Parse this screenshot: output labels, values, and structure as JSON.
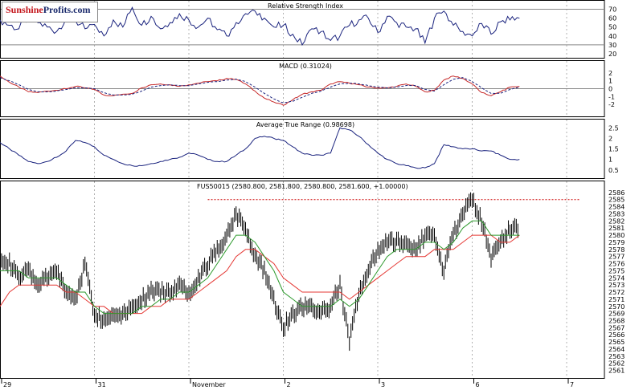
{
  "logo": {
    "brand_part1": "Sunshine",
    "brand_part2": "Profits",
    "brand_part3": ".com"
  },
  "colors": {
    "rsi": "#1a237e",
    "macd_line": "#c62828",
    "macd_signal": "#1a237e",
    "atr": "#1a237e",
    "price": "#000000",
    "ma_fast": "#2e9a2e",
    "ma_slow": "#e53935",
    "resistance": "#cc0000"
  },
  "chart_data": [
    {
      "type": "line",
      "title": "Relative Strength Index",
      "ylim": [
        20,
        75
      ],
      "yticks": [
        20,
        30,
        40,
        50,
        60,
        70
      ],
      "reference_lines": [
        70,
        30
      ],
      "x": [
        0,
        2,
        4,
        6,
        8,
        10,
        12,
        14,
        16,
        18,
        20,
        22,
        24,
        26,
        28,
        30,
        32,
        34,
        36,
        38,
        40,
        42,
        44,
        46,
        48,
        50,
        52,
        54,
        56,
        58,
        60,
        62,
        64,
        66,
        68,
        70,
        72,
        74,
        76,
        78,
        80,
        82,
        84,
        86,
        88,
        90,
        92,
        94,
        96,
        98,
        100,
        102,
        104,
        106,
        108,
        110
      ],
      "values": [
        58,
        52,
        48,
        62,
        55,
        50,
        45,
        60,
        57,
        48,
        53,
        40,
        58,
        50,
        72,
        52,
        62,
        48,
        55,
        65,
        58,
        50,
        60,
        47,
        40,
        55,
        65,
        68,
        60,
        50,
        52,
        42,
        30,
        48,
        45,
        35,
        40,
        52,
        58,
        60,
        44,
        62,
        55,
        50,
        48,
        32,
        60,
        68,
        52,
        45,
        40,
        54,
        42,
        56,
        58,
        60
      ]
    },
    {
      "type": "line",
      "title": "MACD (0.31024)",
      "ylim": [
        -3,
        3
      ],
      "yticks": [
        -2,
        -1,
        0,
        1,
        2
      ],
      "x": [
        0,
        2,
        4,
        6,
        8,
        10,
        12,
        14,
        16,
        18,
        20,
        22,
        24,
        26,
        28,
        30,
        32,
        34,
        36,
        38,
        40,
        42,
        44,
        46,
        48,
        50,
        52,
        54,
        56,
        58,
        60,
        62,
        64,
        66,
        68,
        70,
        72,
        74,
        76,
        78,
        80,
        82,
        84,
        86,
        88,
        90,
        92,
        94,
        96,
        98,
        100,
        102,
        104,
        106,
        108,
        110
      ],
      "series": [
        {
          "values": [
            1.6,
            0.8,
            0.2,
            -0.4,
            -0.5,
            -0.3,
            -0.2,
            0.0,
            0.3,
            0.1,
            -0.1,
            -0.8,
            -0.9,
            -0.7,
            -0.6,
            0.1,
            0.5,
            0.6,
            0.5,
            0.3,
            0.5,
            0.7,
            0.9,
            1.0,
            1.3,
            1.2,
            0.6,
            -0.3,
            -1.2,
            -1.7,
            -2.1,
            -1.4,
            -0.7,
            -0.4,
            -0.2,
            0.6,
            0.9,
            0.7,
            0.5,
            0.2,
            0.1,
            0.1,
            0.3,
            0.6,
            0.3,
            -0.4,
            -0.2,
            1.1,
            1.6,
            1.3,
            0.6,
            -0.5,
            -0.9,
            -0.4,
            0.2,
            0.3
          ]
        },
        {
          "values": [
            1.4,
            1.0,
            0.5,
            -0.1,
            -0.4,
            -0.4,
            -0.3,
            -0.1,
            0.1,
            0.1,
            0.0,
            -0.5,
            -0.8,
            -0.8,
            -0.7,
            -0.3,
            0.2,
            0.4,
            0.5,
            0.4,
            0.4,
            0.6,
            0.8,
            0.9,
            1.1,
            1.2,
            0.9,
            0.2,
            -0.6,
            -1.3,
            -1.8,
            -1.6,
            -1.1,
            -0.6,
            -0.3,
            0.2,
            0.6,
            0.7,
            0.6,
            0.4,
            0.2,
            0.1,
            0.2,
            0.4,
            0.4,
            -0.1,
            -0.3,
            0.5,
            1.2,
            1.4,
            0.9,
            0.1,
            -0.6,
            -0.6,
            -0.1,
            0.2
          ]
        }
      ]
    },
    {
      "type": "line",
      "title": "Average True Range (0.98698)",
      "ylim": [
        0.3,
        2.7
      ],
      "yticks": [
        0.5,
        1.0,
        1.5,
        2.0,
        2.5
      ],
      "x": [
        0,
        2,
        4,
        6,
        8,
        10,
        12,
        14,
        16,
        18,
        20,
        22,
        24,
        26,
        28,
        30,
        32,
        34,
        36,
        38,
        40,
        42,
        44,
        46,
        48,
        50,
        52,
        54,
        56,
        58,
        60,
        62,
        64,
        66,
        68,
        70,
        72,
        74,
        76,
        78,
        80,
        82,
        84,
        86,
        88,
        90,
        92,
        94,
        96,
        98,
        100,
        102,
        104,
        106,
        108,
        110
      ],
      "values": [
        1.8,
        1.5,
        1.2,
        0.9,
        0.8,
        0.9,
        1.1,
        1.4,
        1.9,
        1.8,
        1.6,
        1.2,
        1.0,
        0.8,
        0.7,
        0.7,
        0.8,
        0.9,
        1.0,
        1.1,
        1.3,
        1.2,
        1.0,
        0.9,
        0.9,
        1.2,
        1.5,
        2.0,
        2.1,
        2.0,
        1.9,
        1.6,
        1.3,
        1.2,
        1.2,
        1.3,
        2.5,
        2.4,
        2.1,
        1.7,
        1.3,
        1.0,
        0.8,
        0.7,
        0.6,
        0.6,
        0.8,
        1.7,
        1.6,
        1.5,
        1.5,
        1.4,
        1.4,
        1.2,
        1.0,
        1.0
      ]
    },
    {
      "type": "line",
      "title": "FUS50015 (2580.800, 2581.800, 2580.800, 2581.600, +1.00000)",
      "ylim": [
        2560.5,
        2587
      ],
      "yticks": [
        2561,
        2562,
        2563,
        2564,
        2565,
        2566,
        2567,
        2568,
        2569,
        2570,
        2571,
        2572,
        2573,
        2574,
        2575,
        2576,
        2577,
        2578,
        2579,
        2580,
        2581,
        2582,
        2583,
        2584,
        2585,
        2586
      ],
      "categories": [
        "29",
        "31",
        "November",
        "2",
        "3",
        "6",
        "7"
      ],
      "category_x": [
        0,
        20,
        40,
        60,
        80,
        100,
        120
      ],
      "resistance": 2585,
      "x": [
        0,
        2,
        4,
        6,
        8,
        10,
        12,
        14,
        16,
        18,
        20,
        22,
        24,
        26,
        28,
        30,
        32,
        34,
        36,
        38,
        40,
        42,
        44,
        46,
        48,
        50,
        52,
        54,
        56,
        58,
        60,
        62,
        64,
        66,
        68,
        70,
        72,
        74,
        76,
        78,
        80,
        82,
        84,
        86,
        88,
        90,
        92,
        94,
        96,
        98,
        100,
        102,
        104,
        106,
        108,
        110
      ],
      "series": [
        {
          "name": "price",
          "values": [
            2577,
            2576,
            2574,
            2575,
            2573,
            2574,
            2575,
            2572,
            2571,
            2576,
            2569,
            2568,
            2569,
            2569,
            2570,
            2571,
            2572,
            2572,
            2572,
            2573,
            2572,
            2574,
            2576,
            2578,
            2580,
            2583,
            2581,
            2577,
            2575,
            2571,
            2567,
            2569,
            2570,
            2570,
            2569,
            2570,
            2573,
            2565,
            2572,
            2575,
            2578,
            2579,
            2579,
            2579,
            2578,
            2580,
            2580,
            2575,
            2580,
            2583,
            2585,
            2582,
            2577,
            2579,
            2581,
            2581
          ]
        },
        {
          "name": "ma_fast",
          "values": [
            2575,
            2575,
            2575,
            2574,
            2574,
            2574,
            2574,
            2573,
            2572,
            2572,
            2570,
            2569,
            2569,
            2569,
            2569,
            2570,
            2570,
            2571,
            2571,
            2572,
            2572,
            2573,
            2574,
            2576,
            2578,
            2580,
            2580,
            2579,
            2577,
            2575,
            2572,
            2571,
            2570,
            2570,
            2570,
            2570,
            2571,
            2570,
            2571,
            2573,
            2575,
            2577,
            2578,
            2578,
            2578,
            2579,
            2579,
            2578,
            2579,
            2581,
            2582,
            2582,
            2580,
            2580,
            2580,
            2580
          ]
        },
        {
          "name": "ma_slow",
          "values": [
            2570,
            2572,
            2573,
            2573,
            2573,
            2573,
            2573,
            2572,
            2572,
            2571,
            2570,
            2570,
            2569,
            2569,
            2569,
            2569,
            2570,
            2570,
            2571,
            2571,
            2571,
            2572,
            2573,
            2574,
            2575,
            2577,
            2578,
            2578,
            2577,
            2576,
            2574,
            2573,
            2572,
            2572,
            2572,
            2572,
            2572,
            2571,
            2572,
            2573,
            2574,
            2575,
            2576,
            2577,
            2577,
            2577,
            2578,
            2578,
            2578,
            2579,
            2580,
            2580,
            2580,
            2579,
            2579,
            2580
          ]
        }
      ]
    }
  ]
}
